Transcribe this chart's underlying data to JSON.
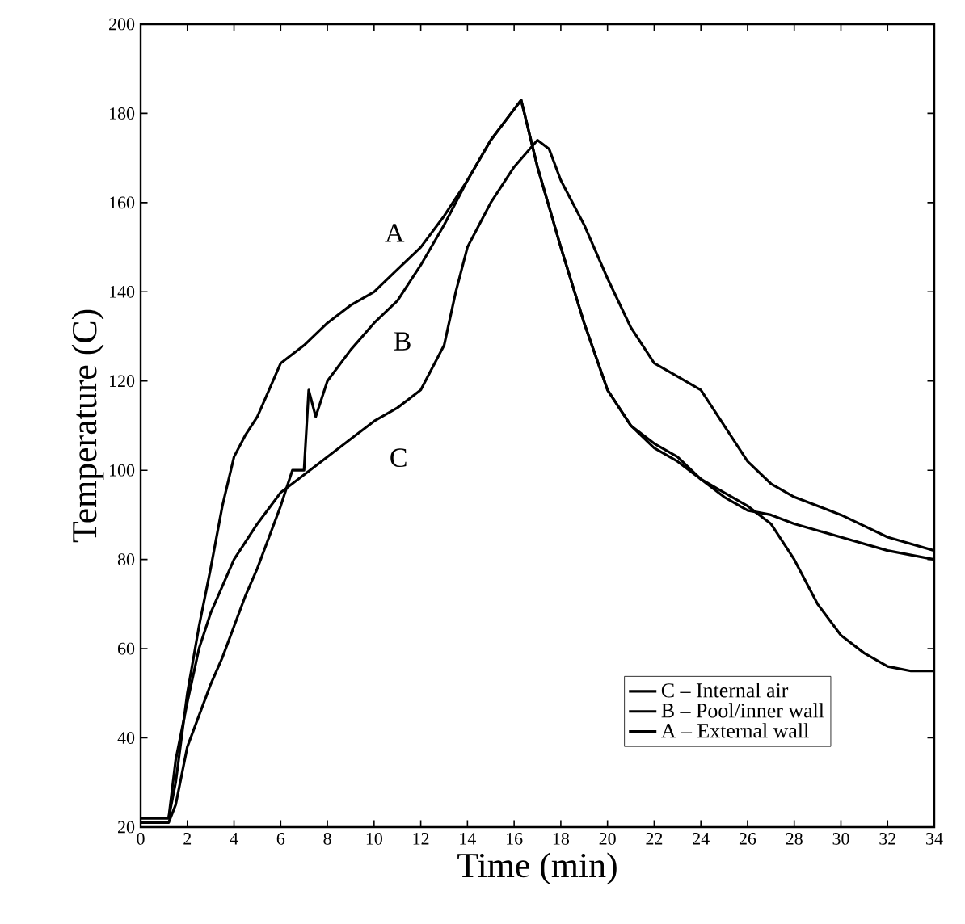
{
  "chart_data": {
    "type": "line",
    "xlabel": "Time (min)",
    "ylabel": "Temperature (C)",
    "xlim": [
      0,
      34
    ],
    "ylim": [
      20,
      200
    ],
    "xticks": [
      0,
      2,
      4,
      6,
      8,
      10,
      12,
      14,
      16,
      18,
      20,
      22,
      24,
      26,
      28,
      30,
      32,
      34
    ],
    "yticks": [
      20,
      40,
      60,
      80,
      100,
      120,
      140,
      160,
      180,
      200
    ],
    "grid": false,
    "legend": "bottom right",
    "marker": "none",
    "line_style": "solid",
    "series": [
      {
        "name": "C – Internal air",
        "color": "#000000",
        "x": [
          0,
          1.2,
          1.5,
          2,
          2.5,
          3,
          4,
          5,
          6,
          7,
          8,
          9,
          10,
          11,
          12,
          13,
          13.5,
          14,
          15,
          16,
          17,
          17.5,
          18,
          19,
          20,
          21,
          22,
          23,
          24,
          25,
          26,
          27,
          28,
          30,
          32,
          34
        ],
        "values": [
          22,
          22,
          35,
          48,
          60,
          68,
          80,
          88,
          95,
          99,
          103,
          107,
          111,
          114,
          118,
          128,
          140,
          150,
          160,
          168,
          174,
          172,
          165,
          155,
          143,
          132,
          124,
          121,
          118,
          110,
          102,
          97,
          94,
          90,
          85,
          82
        ]
      },
      {
        "name": "B – Pool/inner wall",
        "color": "#000000",
        "x": [
          0,
          1.2,
          1.5,
          2,
          2.5,
          3,
          3.5,
          4,
          4.5,
          5,
          5.5,
          6,
          6.5,
          7,
          7.2,
          7.5,
          8,
          9,
          10,
          11,
          12,
          13,
          14,
          15,
          16.3,
          17,
          18,
          19,
          20,
          21,
          22,
          23,
          24,
          25,
          26,
          27,
          28,
          29,
          30,
          31,
          32,
          33,
          34
        ],
        "values": [
          21,
          21,
          25,
          38,
          45,
          52,
          58,
          65,
          72,
          78,
          85,
          92,
          100,
          100,
          118,
          112,
          120,
          127,
          133,
          138,
          146,
          155,
          165,
          174,
          183,
          168,
          150,
          133,
          118,
          110,
          106,
          103,
          98,
          95,
          92,
          88,
          80,
          70,
          63,
          59,
          56,
          55,
          55
        ]
      },
      {
        "name": "A – External wall",
        "color": "#000000",
        "x": [
          0,
          1.2,
          1.5,
          2,
          2.5,
          3,
          3.5,
          4,
          4.5,
          5,
          5.5,
          6,
          7,
          8,
          9,
          10,
          11,
          12,
          13,
          14,
          15,
          16.3,
          17,
          18,
          19,
          20,
          21,
          22,
          23,
          24,
          25,
          26,
          27,
          28,
          30,
          32,
          34
        ],
        "values": [
          22,
          22,
          30,
          50,
          65,
          78,
          92,
          103,
          108,
          112,
          118,
          124,
          128,
          133,
          137,
          140,
          145,
          150,
          157,
          165,
          174,
          183,
          168,
          150,
          133,
          118,
          110,
          105,
          102,
          98,
          94,
          91,
          90,
          88,
          85,
          82,
          80
        ]
      }
    ],
    "annotations": [
      "A",
      "B",
      "C"
    ]
  }
}
